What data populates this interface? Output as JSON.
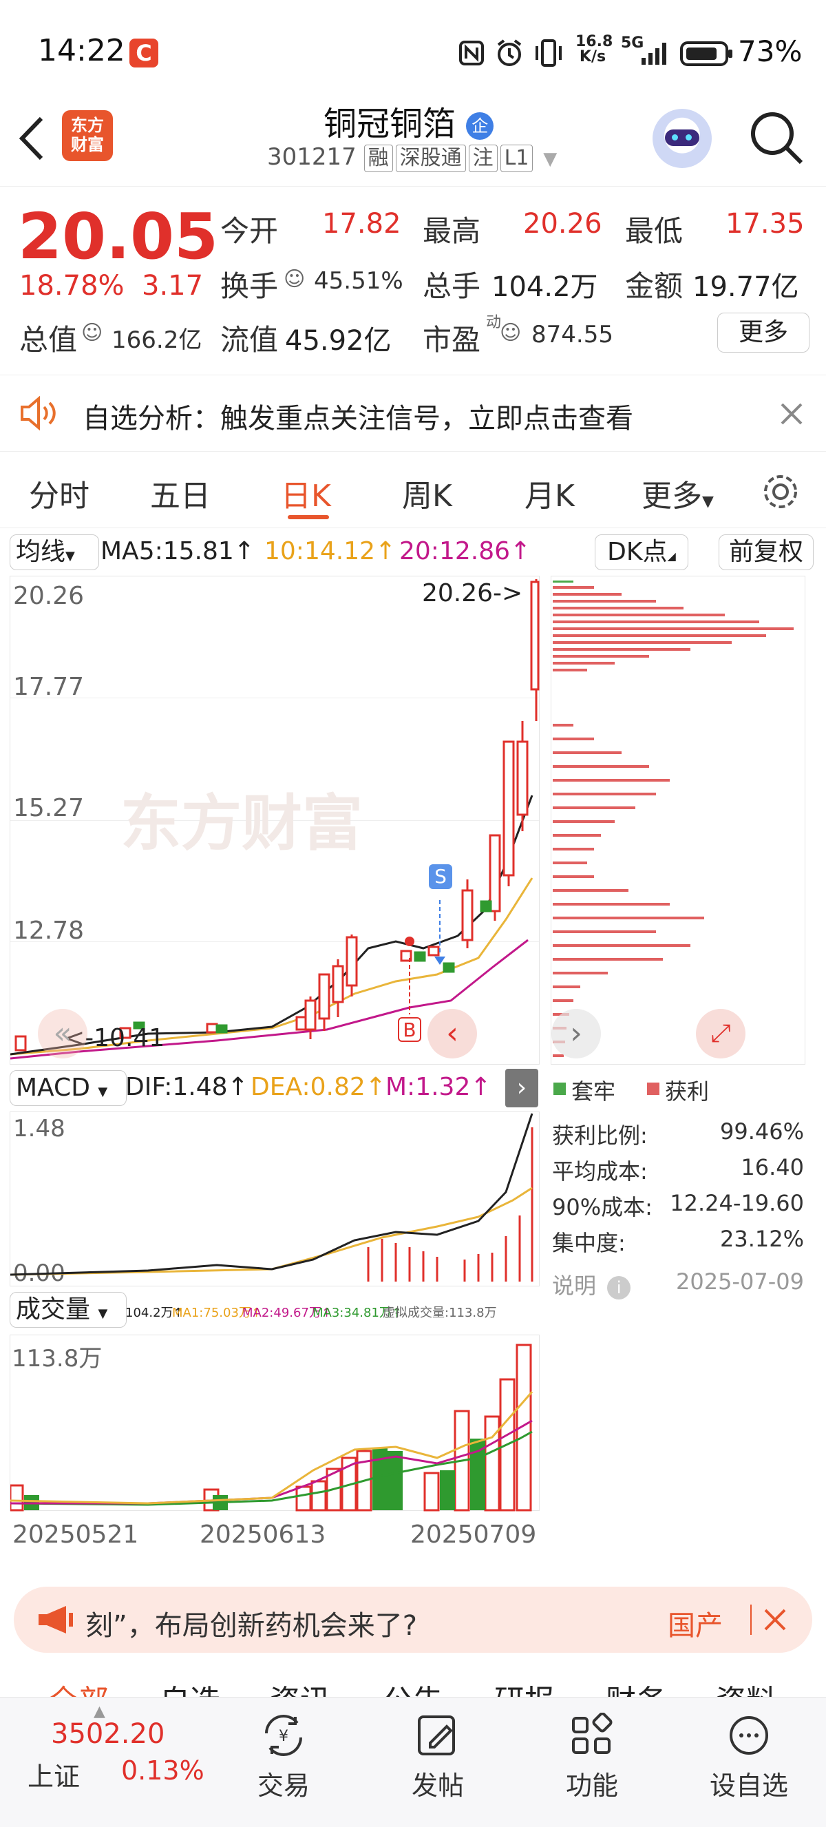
{
  "status_bar": {
    "time": "14:22",
    "speed": "16.8\nK/s",
    "network": "5G",
    "battery": "73%"
  },
  "header": {
    "title": "铜冠铜箔",
    "code": "301217",
    "tags": [
      "融",
      "深股通",
      "注",
      "L1"
    ],
    "logo_text": "东方\n财富",
    "badge": "企"
  },
  "quote": {
    "price": "20.05",
    "pct": "18.78%",
    "chg": "3.17",
    "open_label": "今开",
    "open": "17.82",
    "high_label": "最高",
    "high": "20.26",
    "low_label": "最低",
    "low": "17.35",
    "turnover_label": "换手",
    "turnover": "45.51%",
    "volume_label": "总手",
    "volume": "104.2万",
    "amount_label": "金额",
    "amount": "19.77亿",
    "mcap_label": "总值",
    "mcap": "166.2亿",
    "float_label": "流值",
    "float": "45.92亿",
    "pe_label": "市盈",
    "pe_sup": "动",
    "pe": "874.55",
    "more": "更多"
  },
  "notice": {
    "text": "自选分析：触发重点关注信号，立即点击查看"
  },
  "tabs": [
    "分时",
    "五日",
    "日K",
    "周K",
    "月K",
    "更多"
  ],
  "active_tab": "日K",
  "ma_bar": {
    "label": "均线",
    "ma5": "MA5:15.81↑",
    "ma10": "10:14.12↑",
    "ma20": "20:12.86↑",
    "dk": "DK点",
    "fq": "前复权"
  },
  "kchart": {
    "y_ticks": [
      "20.26",
      "17.77",
      "15.27",
      "12.78",
      "10.41"
    ],
    "high_mark": "20.26->",
    "low_mark": "<-10.41",
    "watermark": "东方财富",
    "sell": "S",
    "buy": "B"
  },
  "macd": {
    "label": "MACD",
    "dif": "DIF:1.48↑",
    "dea": "DEA:0.82↑",
    "m": "M:1.32↑",
    "top": "1.48",
    "zero": "0.00"
  },
  "vol": {
    "label": "成交量",
    "v": "104.2万↑",
    "ma1": "MA1:75.03万↑",
    "ma2": "MA2:49.67万↑",
    "ma3": "MA3:34.81万↑",
    "virtual": "虚拟成交量:113.8万",
    "top": "113.8万"
  },
  "dates": [
    "20250521",
    "20250613",
    "20250709"
  ],
  "chips": {
    "legend_loss": "套牢",
    "legend_profit": "获利",
    "rows": [
      {
        "k": "获利比例:",
        "v": "99.46%"
      },
      {
        "k": "平均成本:",
        "v": "16.40"
      },
      {
        "k": "90%成本:",
        "v": "12.24-19.60"
      },
      {
        "k": "集中度:",
        "v": "23.12%"
      }
    ],
    "note": "说明",
    "date": "2025-07-09"
  },
  "banner": {
    "text": "刻”，布局创新药机会来了?",
    "right": "国产"
  },
  "subtabs": [
    "全部",
    "自选",
    "资讯",
    "公告",
    "研报",
    "财务",
    "资料"
  ],
  "bottom": {
    "index_value": "3502.20",
    "index_name": "上证",
    "index_pct": "0.13%",
    "items": [
      "交易",
      "发帖",
      "功能",
      "设自选"
    ]
  },
  "colors": {
    "up": "#e0302b",
    "down": "#2f9a2f",
    "ma10": "#e9b53a",
    "ma20": "#c2188a",
    "ma5": "#222222"
  }
}
